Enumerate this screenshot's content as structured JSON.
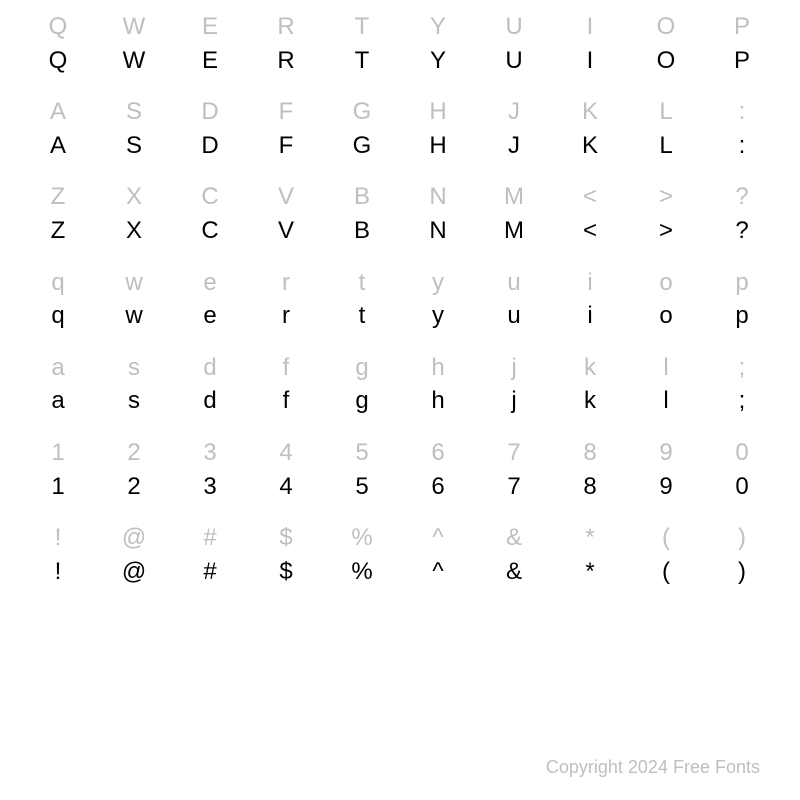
{
  "grid": {
    "rows": [
      [
        "Q",
        "W",
        "E",
        "R",
        "T",
        "Y",
        "U",
        "I",
        "O",
        "P"
      ],
      [
        "A",
        "S",
        "D",
        "F",
        "G",
        "H",
        "J",
        "K",
        "L",
        ":"
      ],
      [
        "Z",
        "X",
        "C",
        "V",
        "B",
        "N",
        "M",
        "<",
        ">",
        "?"
      ],
      [
        "q",
        "w",
        "e",
        "r",
        "t",
        "y",
        "u",
        "i",
        "o",
        "p"
      ],
      [
        "a",
        "s",
        "d",
        "f",
        "g",
        "h",
        "j",
        "k",
        "l",
        ";"
      ],
      [
        "1",
        "2",
        "3",
        "4",
        "5",
        "6",
        "7",
        "8",
        "9",
        "0"
      ],
      [
        "!",
        "@",
        "#",
        "$",
        "%",
        "^",
        "&",
        "*",
        "(",
        ")"
      ]
    ],
    "columns": 10,
    "ref_color": "#bfbfbf",
    "sample_color": "#000000",
    "background_color": "#ffffff",
    "cell_fontsize": 24
  },
  "copyright": "Copyright 2024 Free Fonts"
}
